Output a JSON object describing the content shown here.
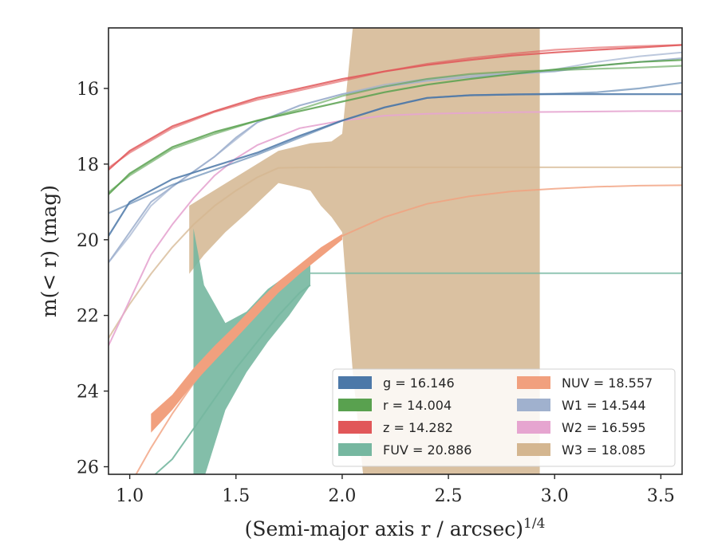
{
  "chart_data": {
    "type": "line",
    "xlabel": "(Semi-major axis r / arcsec)",
    "xlabel_exponent": "1/4",
    "ylabel": "m(< r) (mag)",
    "xlim": [
      0.9,
      3.6
    ],
    "ylim": [
      26.2,
      14.4
    ],
    "y_inverted": true,
    "x_ticks": [
      "1.0",
      "1.5",
      "2.0",
      "2.5",
      "3.0",
      "3.5"
    ],
    "y_ticks": [
      "16",
      "18",
      "20",
      "22",
      "24",
      "26"
    ],
    "grid": false,
    "legend_position": "lower-right",
    "series": [
      {
        "name": "g = 16.146",
        "band": "g",
        "value": "16.146",
        "color": "#4C78A8",
        "x": [
          0.9,
          1.0,
          1.2,
          1.4,
          1.6,
          1.8,
          2.0,
          2.2,
          2.4,
          2.6,
          2.8,
          3.0,
          3.2,
          3.4,
          3.6
        ],
        "y": [
          19.9,
          19.0,
          18.4,
          18.05,
          17.7,
          17.25,
          16.85,
          16.5,
          16.25,
          16.18,
          16.16,
          16.15,
          16.15,
          16.15,
          16.15
        ],
        "y_alt": [
          19.3,
          19.05,
          18.55,
          18.15,
          17.75,
          17.3,
          16.85,
          16.5,
          16.25,
          16.18,
          16.16,
          16.14,
          16.1,
          16.0,
          15.85
        ],
        "band_half_width": 0.04
      },
      {
        "name": "r = 14.004",
        "band": "r",
        "value": "14.004",
        "color": "#59A14F",
        "x": [
          0.9,
          1.0,
          1.2,
          1.4,
          1.6,
          1.8,
          2.0,
          2.2,
          2.4,
          2.6,
          2.8,
          3.0,
          3.2,
          3.4,
          3.6
        ],
        "y": [
          18.8,
          18.25,
          17.55,
          17.15,
          16.85,
          16.6,
          16.35,
          16.1,
          15.9,
          15.75,
          15.62,
          15.5,
          15.4,
          15.3,
          15.25
        ],
        "y_alt": [
          18.75,
          18.3,
          17.6,
          17.2,
          16.85,
          16.55,
          16.2,
          15.95,
          15.75,
          15.62,
          15.55,
          15.52,
          15.48,
          15.45,
          15.4
        ],
        "band_half_width": 0.04
      },
      {
        "name": "z = 14.282",
        "band": "z",
        "value": "14.282",
        "color": "#E15759",
        "x": [
          0.9,
          1.0,
          1.2,
          1.4,
          1.6,
          1.8,
          2.0,
          2.2,
          2.4,
          2.6,
          2.8,
          3.0,
          3.2,
          3.4,
          3.6
        ],
        "y": [
          18.15,
          17.65,
          17.0,
          16.6,
          16.25,
          16.0,
          15.75,
          15.55,
          15.38,
          15.25,
          15.13,
          15.05,
          14.98,
          14.92,
          14.85
        ],
        "y_alt": [
          18.1,
          17.7,
          17.05,
          16.62,
          16.3,
          16.05,
          15.8,
          15.55,
          15.35,
          15.2,
          15.08,
          14.98,
          14.92,
          14.88,
          14.85
        ],
        "band_half_width": 0.05
      },
      {
        "name": "FUV = 20.886",
        "band": "FUV",
        "value": "20.886",
        "color": "#76B7A0",
        "x": [
          1.3,
          1.35,
          1.45,
          1.55,
          1.65,
          1.75,
          1.85
        ],
        "y_low": [
          25.5,
          23.6,
          22.3,
          21.8,
          21.5,
          21.2,
          20.7
        ],
        "y_high": [
          19.7,
          21.2,
          22.2,
          21.9,
          21.3,
          20.9,
          20.6
        ],
        "y_low_tail": [
          26.3,
          26.3,
          24.5,
          23.5,
          22.7,
          22.0,
          21.2
        ],
        "x_tail_start": 1.85,
        "y_tail": 20.886,
        "x_trace": [
          1.1,
          1.2,
          1.3,
          1.4,
          1.5,
          1.6,
          1.7,
          1.8,
          1.85
        ],
        "y_trace": [
          26.3,
          25.8,
          25.0,
          24.2,
          23.4,
          22.7,
          22.0,
          21.4,
          21.2
        ]
      },
      {
        "name": "NUV = 18.557",
        "band": "NUV",
        "value": "18.557",
        "color": "#F1A07E",
        "x": [
          0.9,
          1.0,
          1.1,
          1.2,
          1.3,
          1.4,
          1.5,
          1.6,
          1.7,
          1.8,
          1.9,
          2.0,
          2.2,
          2.4,
          2.6,
          2.8,
          3.0,
          3.2,
          3.4,
          3.6
        ],
        "y": [
          27.0,
          26.5,
          25.5,
          24.6,
          23.8,
          23.1,
          22.5,
          21.9,
          21.3,
          20.8,
          20.35,
          19.9,
          19.4,
          19.05,
          18.85,
          18.72,
          18.65,
          18.6,
          18.57,
          18.56
        ],
        "band_x": [
          1.1,
          1.2,
          1.3,
          1.4,
          1.5,
          1.6,
          1.7,
          1.8,
          1.9,
          2.0
        ],
        "band_y_low": [
          25.1,
          24.5,
          23.8,
          23.2,
          22.6,
          22.0,
          21.4,
          20.9,
          20.45,
          20.0
        ],
        "band_y_high": [
          24.6,
          24.1,
          23.4,
          22.8,
          22.25,
          21.65,
          21.1,
          20.65,
          20.2,
          19.85
        ]
      },
      {
        "name": "W1 = 14.544",
        "band": "W1",
        "value": "14.544",
        "color": "#A0B1CE",
        "x": [
          0.9,
          1.0,
          1.1,
          1.2,
          1.3,
          1.4,
          1.5,
          1.6,
          1.8,
          2.0,
          2.2,
          2.4,
          2.6,
          2.8,
          3.0,
          3.2,
          3.4,
          3.6
        ],
        "y": [
          20.6,
          19.8,
          19.0,
          18.6,
          18.2,
          17.8,
          17.3,
          16.9,
          16.45,
          16.15,
          15.95,
          15.8,
          15.7,
          15.62,
          15.55,
          15.4,
          15.3,
          15.2
        ],
        "y_alt": [
          20.6,
          19.9,
          19.1,
          18.6,
          18.2,
          17.8,
          17.35,
          16.9,
          16.45,
          16.15,
          15.9,
          15.75,
          15.65,
          15.6,
          15.5,
          15.3,
          15.15,
          15.05
        ]
      },
      {
        "name": "W2 = 16.595",
        "band": "W2",
        "value": "16.595",
        "color": "#E6A5D0",
        "x": [
          0.9,
          1.0,
          1.1,
          1.2,
          1.3,
          1.4,
          1.5,
          1.6,
          1.8,
          2.0,
          2.2,
          2.4,
          2.6,
          2.8,
          3.0,
          3.2,
          3.4,
          3.6
        ],
        "y": [
          22.8,
          21.6,
          20.4,
          19.6,
          18.9,
          18.3,
          17.85,
          17.5,
          17.05,
          16.85,
          16.72,
          16.67,
          16.65,
          16.63,
          16.62,
          16.61,
          16.6,
          16.6
        ]
      },
      {
        "name": "W3 = 18.085",
        "band": "W3",
        "value": "18.085",
        "color": "#D4B690",
        "x": [
          0.9,
          1.0,
          1.1,
          1.2,
          1.3,
          1.4,
          1.5,
          1.6,
          1.7,
          1.8,
          2.0,
          2.5,
          3.0,
          3.6
        ],
        "y": [
          22.6,
          21.7,
          20.9,
          20.2,
          19.6,
          19.1,
          18.7,
          18.35,
          18.1,
          18.09,
          18.085,
          18.085,
          18.085,
          18.085
        ],
        "band_outline": [
          [
            1.28,
            19.1
          ],
          [
            1.7,
            17.65
          ],
          [
            1.85,
            17.45
          ],
          [
            1.95,
            17.4
          ],
          [
            2.0,
            17.2
          ],
          [
            2.05,
            14.4
          ],
          [
            2.93,
            14.4
          ],
          [
            2.93,
            26.3
          ],
          [
            2.1,
            26.3
          ],
          [
            2.05,
            23.5
          ],
          [
            2.0,
            19.8
          ],
          [
            1.95,
            19.4
          ],
          [
            1.9,
            19.1
          ],
          [
            1.85,
            18.7
          ],
          [
            1.78,
            18.6
          ],
          [
            1.7,
            18.5
          ],
          [
            1.55,
            19.3
          ],
          [
            1.45,
            19.8
          ],
          [
            1.35,
            20.4
          ],
          [
            1.28,
            20.9
          ]
        ]
      }
    ]
  },
  "legend": {
    "items": [
      {
        "label": "g = 16.146",
        "color": "#4C78A8"
      },
      {
        "label": "r = 14.004",
        "color": "#59A14F"
      },
      {
        "label": "z = 14.282",
        "color": "#E15759"
      },
      {
        "label": "FUV = 20.886",
        "color": "#76B7A0"
      },
      {
        "label": "NUV = 18.557",
        "color": "#F1A07E"
      },
      {
        "label": "W1 = 14.544",
        "color": "#A0B1CE"
      },
      {
        "label": "W2 = 16.595",
        "color": "#E6A5D0"
      },
      {
        "label": "W3 = 18.085",
        "color": "#D4B690"
      }
    ]
  }
}
